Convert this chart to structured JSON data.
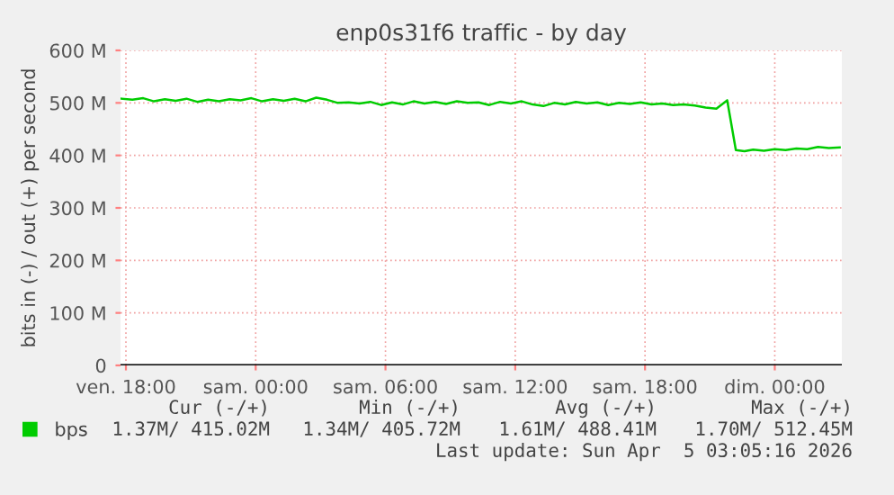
{
  "chart_data": {
    "type": "line",
    "title": "enp0s31f6 traffic - by day",
    "ylabel": "bits in (-) / out (+) per second",
    "x": [
      "2026-04-03T17:48",
      "2026-04-03T18:18",
      "2026-04-03T18:48",
      "2026-04-03T19:18",
      "2026-04-03T19:48",
      "2026-04-03T20:18",
      "2026-04-03T20:48",
      "2026-04-03T21:18",
      "2026-04-03T21:48",
      "2026-04-03T22:18",
      "2026-04-03T22:48",
      "2026-04-03T23:18",
      "2026-04-03T23:48",
      "2026-04-04T00:18",
      "2026-04-04T00:48",
      "2026-04-04T01:18",
      "2026-04-04T01:48",
      "2026-04-04T02:18",
      "2026-04-04T02:48",
      "2026-04-04T03:18",
      "2026-04-04T03:48",
      "2026-04-04T04:18",
      "2026-04-04T04:48",
      "2026-04-04T05:18",
      "2026-04-04T05:48",
      "2026-04-04T06:18",
      "2026-04-04T06:48",
      "2026-04-04T07:18",
      "2026-04-04T07:48",
      "2026-04-04T08:18",
      "2026-04-04T08:48",
      "2026-04-04T09:18",
      "2026-04-04T09:48",
      "2026-04-04T10:18",
      "2026-04-04T10:48",
      "2026-04-04T11:18",
      "2026-04-04T11:48",
      "2026-04-04T12:18",
      "2026-04-04T12:48",
      "2026-04-04T13:18",
      "2026-04-04T13:48",
      "2026-04-04T14:18",
      "2026-04-04T14:48",
      "2026-04-04T15:18",
      "2026-04-04T15:48",
      "2026-04-04T16:18",
      "2026-04-04T16:48",
      "2026-04-04T17:18",
      "2026-04-04T17:48",
      "2026-04-04T18:18",
      "2026-04-04T18:48",
      "2026-04-04T19:18",
      "2026-04-04T19:48",
      "2026-04-04T20:18",
      "2026-04-04T20:48",
      "2026-04-04T21:18",
      "2026-04-04T21:48",
      "2026-04-04T22:12",
      "2026-04-04T22:36",
      "2026-04-04T23:00",
      "2026-04-04T23:30",
      "2026-04-05T00:00",
      "2026-04-05T00:30",
      "2026-04-05T01:00",
      "2026-04-05T01:30",
      "2026-04-05T02:00",
      "2026-04-05T02:30",
      "2026-04-05T03:00"
    ],
    "series": [
      {
        "name": "bps",
        "color": "#00cc00",
        "values": [
          508,
          506,
          509,
          503,
          507,
          504,
          508,
          502,
          506,
          503,
          507,
          505,
          509,
          503,
          507,
          504,
          508,
          503,
          510,
          506,
          500,
          501,
          499,
          502,
          496,
          501,
          497,
          503,
          499,
          502,
          498,
          503,
          500,
          501,
          496,
          502,
          499,
          503,
          497,
          494,
          500,
          497,
          502,
          499,
          501,
          496,
          500,
          498,
          501,
          497,
          499,
          496,
          497,
          495,
          491,
          489,
          505,
          410,
          408,
          411,
          409,
          412,
          410,
          413,
          412,
          416,
          414,
          415
        ]
      }
    ],
    "xlim": [
      "2026-04-03T17:45",
      "2026-04-05T03:06"
    ],
    "ylim": [
      0,
      600
    ],
    "xticks": [
      {
        "value": "2026-04-03T18:00",
        "label": "ven. 18:00"
      },
      {
        "value": "2026-04-04T00:00",
        "label": "sam. 00:00"
      },
      {
        "value": "2026-04-04T06:00",
        "label": "sam. 06:00"
      },
      {
        "value": "2026-04-04T12:00",
        "label": "sam. 12:00"
      },
      {
        "value": "2026-04-04T18:00",
        "label": "sam. 18:00"
      },
      {
        "value": "2026-04-05T00:00",
        "label": "dim. 00:00"
      }
    ],
    "yticks": [
      {
        "value": 0,
        "label": "0"
      },
      {
        "value": 100,
        "label": "100 M"
      },
      {
        "value": 200,
        "label": "200 M"
      },
      {
        "value": 300,
        "label": "300 M"
      },
      {
        "value": 400,
        "label": "400 M"
      },
      {
        "value": 500,
        "label": "500 M"
      },
      {
        "value": 600,
        "label": "600 M"
      }
    ],
    "grid": true,
    "legend": "bottom left",
    "annotations": [
      "Cur (-/+)",
      "Min (-/+)",
      "Avg (-/+)",
      "Max (-/+)",
      "1.37M/ 415.02M",
      "1.34M/ 405.72M",
      "1.61M/ 488.41M",
      "1.70M/ 512.45M",
      "Last update: Sun Apr  5 03:05:16 2026"
    ]
  }
}
